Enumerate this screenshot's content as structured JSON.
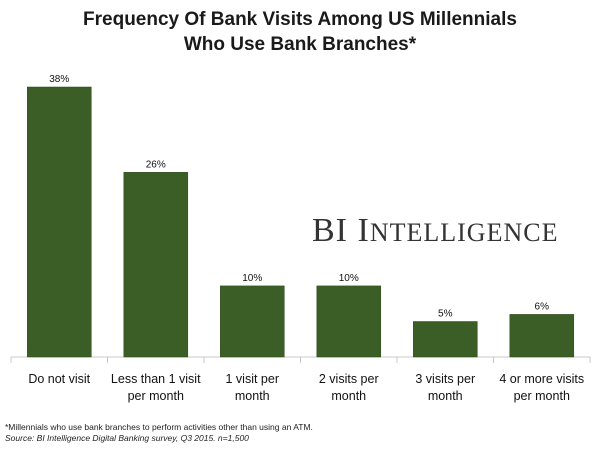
{
  "title_lines": [
    "Frequency Of Bank Visits Among US Millennials",
    "Who Use Bank Branches*"
  ],
  "watermark": "BI Intelligence",
  "footnote": "*Millennials who use bank branches to perform activities other than using an ATM.",
  "source": "Source: BI Intelligence Digital Banking survey, Q3 2015. n=1,500",
  "colors": {
    "bar": "#3a5e25",
    "bar_edge": "#2c4a1b",
    "axis": "#c8c8c8",
    "watermark": "#333333"
  },
  "chart_data": {
    "type": "bar",
    "title": "Frequency Of Bank Visits Among US Millennials Who Use Bank Branches*",
    "categories": [
      [
        "Do not visit"
      ],
      [
        "Less than 1 visit",
        "per month"
      ],
      [
        "1 visit per",
        "month"
      ],
      [
        "2 visits per",
        "month"
      ],
      [
        "3 visits per",
        "month"
      ],
      [
        "4 or more visits",
        "per month"
      ]
    ],
    "values": [
      38,
      26,
      10,
      10,
      5,
      6
    ],
    "labels": [
      "38%",
      "26%",
      "10%",
      "10%",
      "5%",
      "6%"
    ],
    "unit": "%",
    "ylim": [
      0,
      38
    ],
    "grid": false,
    "legend": "none"
  }
}
